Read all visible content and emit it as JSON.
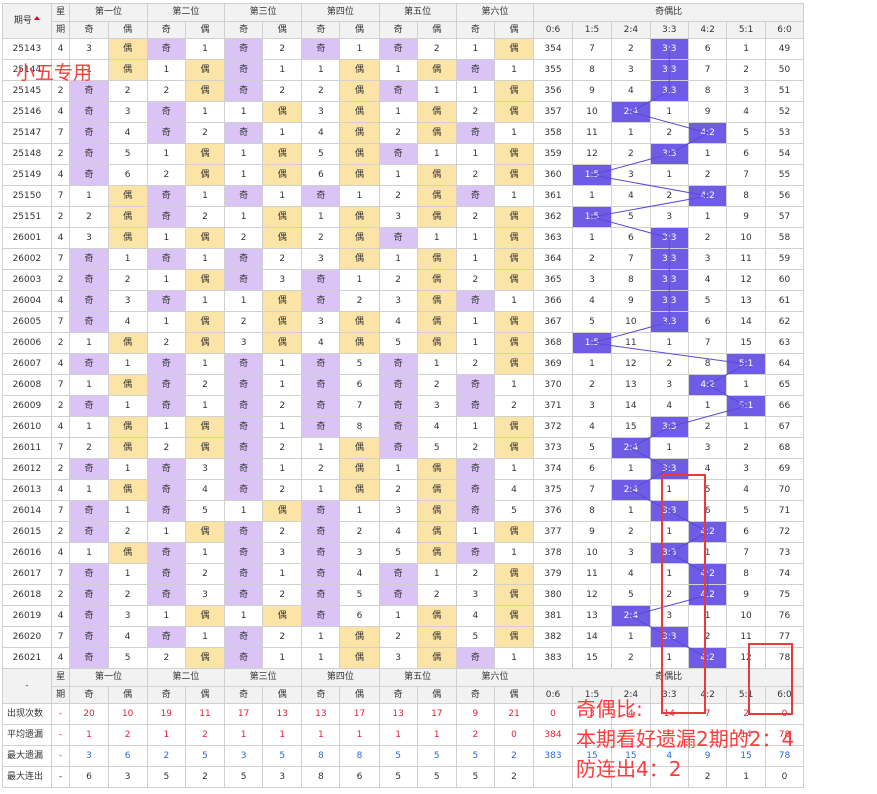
{
  "header": {
    "period_label": "期号",
    "weekday_label": [
      "星",
      "期"
    ],
    "position_labels": [
      "第一位",
      "第二位",
      "第三位",
      "第四位",
      "第五位",
      "第六位"
    ],
    "ratio_label": "奇偶比",
    "odd": "奇",
    "even": "偶",
    "ratio_columns": [
      "0:6",
      "1:5",
      "2:4",
      "3:3",
      "4:2",
      "5:1",
      "6:0"
    ]
  },
  "rows": [
    {
      "period": "25143",
      "wd": "4",
      "pos": [
        [
          3,
          "偶"
        ],
        [
          1,
          "奇"
        ],
        [
          2,
          "奇"
        ],
        [
          1,
          "奇"
        ],
        [
          2,
          "奇"
        ],
        [
          1,
          "偶"
        ]
      ],
      "ratio": [
        354,
        7,
        2,
        "3:3",
        6,
        1,
        49
      ]
    },
    {
      "period": "25144",
      "wd": "7",
      "pos": [
        [
          1,
          "偶"
        ],
        [
          1,
          "偶"
        ],
        [
          1,
          "奇"
        ],
        [
          1,
          "偶"
        ],
        [
          1,
          "偶"
        ],
        [
          1,
          "奇"
        ]
      ],
      "ratio": [
        355,
        8,
        3,
        "3:3",
        7,
        2,
        50
      ]
    },
    {
      "period": "25145",
      "wd": "2",
      "pos": [
        [
          2,
          "奇"
        ],
        [
          2,
          "偶"
        ],
        [
          2,
          "奇"
        ],
        [
          2,
          "偶"
        ],
        [
          1,
          "奇"
        ],
        [
          1,
          "偶"
        ]
      ],
      "ratio": [
        356,
        9,
        4,
        "3:3",
        8,
        3,
        51
      ]
    },
    {
      "period": "25146",
      "wd": "4",
      "pos": [
        [
          3,
          "奇"
        ],
        [
          1,
          "奇"
        ],
        [
          1,
          "偶"
        ],
        [
          3,
          "偶"
        ],
        [
          1,
          "偶"
        ],
        [
          2,
          "偶"
        ]
      ],
      "ratio": [
        357,
        10,
        "2:4",
        1,
        9,
        4,
        52
      ]
    },
    {
      "period": "25147",
      "wd": "7",
      "pos": [
        [
          4,
          "奇"
        ],
        [
          2,
          "奇"
        ],
        [
          1,
          "奇"
        ],
        [
          4,
          "偶"
        ],
        [
          2,
          "偶"
        ],
        [
          1,
          "奇"
        ]
      ],
      "ratio": [
        358,
        11,
        1,
        2,
        "4:2",
        5,
        53
      ]
    },
    {
      "period": "25148",
      "wd": "2",
      "pos": [
        [
          5,
          "奇"
        ],
        [
          1,
          "偶"
        ],
        [
          1,
          "偶"
        ],
        [
          5,
          "偶"
        ],
        [
          1,
          "奇"
        ],
        [
          1,
          "偶"
        ]
      ],
      "ratio": [
        359,
        12,
        2,
        "3:3",
        1,
        6,
        54
      ]
    },
    {
      "period": "25149",
      "wd": "4",
      "pos": [
        [
          6,
          "奇"
        ],
        [
          2,
          "偶"
        ],
        [
          1,
          "偶"
        ],
        [
          6,
          "偶"
        ],
        [
          1,
          "偶"
        ],
        [
          2,
          "偶"
        ]
      ],
      "ratio": [
        360,
        "1:5",
        3,
        1,
        2,
        7,
        55
      ]
    },
    {
      "period": "25150",
      "wd": "7",
      "pos": [
        [
          1,
          "偶"
        ],
        [
          1,
          "奇"
        ],
        [
          1,
          "奇"
        ],
        [
          1,
          "奇"
        ],
        [
          2,
          "偶"
        ],
        [
          1,
          "奇"
        ]
      ],
      "ratio": [
        361,
        1,
        4,
        2,
        "4:2",
        8,
        56
      ]
    },
    {
      "period": "25151",
      "wd": "2",
      "pos": [
        [
          2,
          "偶"
        ],
        [
          2,
          "奇"
        ],
        [
          1,
          "偶"
        ],
        [
          1,
          "偶"
        ],
        [
          3,
          "偶"
        ],
        [
          2,
          "偶"
        ]
      ],
      "ratio": [
        362,
        "1:5",
        5,
        3,
        1,
        9,
        57
      ]
    },
    {
      "period": "26001",
      "wd": "4",
      "pos": [
        [
          3,
          "偶"
        ],
        [
          1,
          "偶"
        ],
        [
          2,
          "偶"
        ],
        [
          2,
          "偶"
        ],
        [
          1,
          "奇"
        ],
        [
          1,
          "偶"
        ]
      ],
      "ratio": [
        363,
        1,
        6,
        "3:3",
        2,
        10,
        58
      ]
    },
    {
      "period": "26002",
      "wd": "7",
      "pos": [
        [
          1,
          "奇"
        ],
        [
          1,
          "奇"
        ],
        [
          2,
          "奇"
        ],
        [
          3,
          "偶"
        ],
        [
          1,
          "偶"
        ],
        [
          1,
          "偶"
        ]
      ],
      "ratio": [
        364,
        2,
        7,
        "3:3",
        3,
        11,
        59
      ]
    },
    {
      "period": "26003",
      "wd": "2",
      "pos": [
        [
          2,
          "奇"
        ],
        [
          1,
          "偶"
        ],
        [
          3,
          "奇"
        ],
        [
          1,
          "奇"
        ],
        [
          2,
          "偶"
        ],
        [
          2,
          "偶"
        ]
      ],
      "ratio": [
        365,
        3,
        8,
        "3:3",
        4,
        12,
        60
      ]
    },
    {
      "period": "26004",
      "wd": "4",
      "pos": [
        [
          3,
          "奇"
        ],
        [
          1,
          "奇"
        ],
        [
          1,
          "偶"
        ],
        [
          2,
          "奇"
        ],
        [
          3,
          "偶"
        ],
        [
          1,
          "奇"
        ]
      ],
      "ratio": [
        366,
        4,
        9,
        "3:3",
        5,
        13,
        61
      ]
    },
    {
      "period": "26005",
      "wd": "7",
      "pos": [
        [
          4,
          "奇"
        ],
        [
          1,
          "偶"
        ],
        [
          2,
          "偶"
        ],
        [
          3,
          "偶"
        ],
        [
          4,
          "偶"
        ],
        [
          1,
          "偶"
        ]
      ],
      "ratio": [
        367,
        5,
        10,
        "3:3",
        6,
        14,
        62
      ]
    },
    {
      "period": "26006",
      "wd": "2",
      "pos": [
        [
          1,
          "偶"
        ],
        [
          2,
          "偶"
        ],
        [
          3,
          "偶"
        ],
        [
          4,
          "偶"
        ],
        [
          5,
          "偶"
        ],
        [
          1,
          "偶"
        ]
      ],
      "ratio": [
        368,
        "1:5",
        11,
        1,
        7,
        15,
        63
      ]
    },
    {
      "period": "26007",
      "wd": "4",
      "pos": [
        [
          1,
          "奇"
        ],
        [
          1,
          "奇"
        ],
        [
          1,
          "奇"
        ],
        [
          5,
          "奇"
        ],
        [
          1,
          "奇"
        ],
        [
          2,
          "偶"
        ]
      ],
      "ratio": [
        369,
        1,
        12,
        2,
        8,
        "5:1",
        64
      ]
    },
    {
      "period": "26008",
      "wd": "7",
      "pos": [
        [
          1,
          "偶"
        ],
        [
          2,
          "奇"
        ],
        [
          1,
          "奇"
        ],
        [
          6,
          "奇"
        ],
        [
          2,
          "奇"
        ],
        [
          1,
          "奇"
        ]
      ],
      "ratio": [
        370,
        2,
        13,
        3,
        "4:2",
        1,
        65
      ]
    },
    {
      "period": "26009",
      "wd": "2",
      "pos": [
        [
          1,
          "奇"
        ],
        [
          1,
          "奇"
        ],
        [
          2,
          "奇"
        ],
        [
          7,
          "奇"
        ],
        [
          3,
          "奇"
        ],
        [
          2,
          "奇"
        ]
      ],
      "ratio": [
        371,
        3,
        14,
        4,
        1,
        "5:1",
        66
      ]
    },
    {
      "period": "26010",
      "wd": "4",
      "pos": [
        [
          1,
          "偶"
        ],
        [
          1,
          "偶"
        ],
        [
          1,
          "奇"
        ],
        [
          8,
          "奇"
        ],
        [
          4,
          "奇"
        ],
        [
          1,
          "偶"
        ]
      ],
      "ratio": [
        372,
        4,
        15,
        "3:3",
        2,
        1,
        67
      ]
    },
    {
      "period": "26011",
      "wd": "7",
      "pos": [
        [
          2,
          "偶"
        ],
        [
          2,
          "偶"
        ],
        [
          2,
          "奇"
        ],
        [
          1,
          "偶"
        ],
        [
          5,
          "奇"
        ],
        [
          2,
          "偶"
        ]
      ],
      "ratio": [
        373,
        5,
        "2:4",
        1,
        3,
        2,
        68
      ]
    },
    {
      "period": "26012",
      "wd": "2",
      "pos": [
        [
          1,
          "奇"
        ],
        [
          3,
          "奇"
        ],
        [
          1,
          "奇"
        ],
        [
          2,
          "偶"
        ],
        [
          1,
          "偶"
        ],
        [
          1,
          "奇"
        ]
      ],
      "ratio": [
        374,
        6,
        1,
        "3:3",
        4,
        3,
        69
      ]
    },
    {
      "period": "26013",
      "wd": "4",
      "pos": [
        [
          1,
          "偶"
        ],
        [
          4,
          "奇"
        ],
        [
          2,
          "奇"
        ],
        [
          1,
          "偶"
        ],
        [
          2,
          "偶"
        ],
        [
          4,
          "奇"
        ]
      ],
      "ratio": [
        375,
        7,
        "2:4",
        1,
        5,
        4,
        70
      ]
    },
    {
      "period": "26014",
      "wd": "7",
      "pos": [
        [
          1,
          "奇"
        ],
        [
          5,
          "奇"
        ],
        [
          1,
          "偶"
        ],
        [
          1,
          "奇"
        ],
        [
          3,
          "偶"
        ],
        [
          5,
          "奇"
        ]
      ],
      "ratio": [
        376,
        8,
        1,
        "3:3",
        6,
        5,
        71
      ]
    },
    {
      "period": "26015",
      "wd": "2",
      "pos": [
        [
          2,
          "奇"
        ],
        [
          1,
          "偶"
        ],
        [
          2,
          "奇"
        ],
        [
          2,
          "奇"
        ],
        [
          4,
          "偶"
        ],
        [
          1,
          "偶"
        ]
      ],
      "ratio": [
        377,
        9,
        2,
        1,
        "4:2",
        6,
        72
      ]
    },
    {
      "period": "26016",
      "wd": "4",
      "pos": [
        [
          1,
          "偶"
        ],
        [
          1,
          "奇"
        ],
        [
          3,
          "奇"
        ],
        [
          3,
          "奇"
        ],
        [
          5,
          "偶"
        ],
        [
          1,
          "奇"
        ]
      ],
      "ratio": [
        378,
        10,
        3,
        "3:3",
        1,
        7,
        73
      ]
    },
    {
      "period": "26017",
      "wd": "7",
      "pos": [
        [
          1,
          "奇"
        ],
        [
          2,
          "奇"
        ],
        [
          1,
          "奇"
        ],
        [
          4,
          "奇"
        ],
        [
          1,
          "奇"
        ],
        [
          2,
          "偶"
        ]
      ],
      "ratio": [
        379,
        11,
        4,
        1,
        "4:2",
        8,
        74
      ]
    },
    {
      "period": "26018",
      "wd": "2",
      "pos": [
        [
          2,
          "奇"
        ],
        [
          3,
          "奇"
        ],
        [
          2,
          "奇"
        ],
        [
          5,
          "奇"
        ],
        [
          2,
          "奇"
        ],
        [
          3,
          "偶"
        ]
      ],
      "ratio": [
        380,
        12,
        5,
        2,
        "4:2",
        9,
        75
      ]
    },
    {
      "period": "26019",
      "wd": "4",
      "pos": [
        [
          3,
          "奇"
        ],
        [
          1,
          "偶"
        ],
        [
          1,
          "偶"
        ],
        [
          6,
          "奇"
        ],
        [
          1,
          "偶"
        ],
        [
          4,
          "偶"
        ]
      ],
      "ratio": [
        381,
        13,
        "2:4",
        3,
        1,
        10,
        76
      ]
    },
    {
      "period": "26020",
      "wd": "7",
      "pos": [
        [
          4,
          "奇"
        ],
        [
          1,
          "奇"
        ],
        [
          2,
          "奇"
        ],
        [
          1,
          "偶"
        ],
        [
          2,
          "偶"
        ],
        [
          5,
          "偶"
        ]
      ],
      "ratio": [
        382,
        14,
        1,
        "3:3",
        2,
        11,
        77
      ]
    },
    {
      "period": "26021",
      "wd": "4",
      "pos": [
        [
          5,
          "奇"
        ],
        [
          2,
          "偶"
        ],
        [
          1,
          "奇"
        ],
        [
          1,
          "偶"
        ],
        [
          3,
          "偶"
        ],
        [
          1,
          "奇"
        ]
      ],
      "ratio": [
        383,
        15,
        2,
        1,
        "4:2",
        12,
        78
      ]
    }
  ],
  "stats": [
    {
      "label": "出现次数",
      "dash": "-",
      "color": "red",
      "values": [
        20,
        10,
        19,
        11,
        17,
        13,
        13,
        17,
        13,
        17,
        9,
        21,
        0,
        3,
        4,
        14,
        7,
        2,
        0
      ]
    },
    {
      "label": "平均遗漏",
      "dash": "-",
      "color": "red",
      "values": [
        1,
        2,
        1,
        2,
        1,
        1,
        1,
        1,
        1,
        1,
        2,
        0,
        384,
        "",
        "",
        "",
        "",
        14,
        78
      ]
    },
    {
      "label": "最大遗漏",
      "dash": "-",
      "color": "blue",
      "values": [
        3,
        6,
        2,
        5,
        3,
        5,
        8,
        8,
        5,
        5,
        5,
        2,
        383,
        15,
        15,
        4,
        9,
        15,
        78
      ]
    },
    {
      "label": "最大连出",
      "dash": "-",
      "color": "dark",
      "values": [
        6,
        3,
        5,
        2,
        5,
        3,
        8,
        6,
        5,
        5,
        5,
        2,
        "",
        "",
        "",
        "",
        2,
        1,
        0
      ]
    }
  ],
  "overlay": {
    "label": "小五专用",
    "note_lines": [
      "奇偶比:",
      "本期看好遗漏2期的2：4",
      "防连出4：2"
    ]
  },
  "colors": {
    "odd_bg": "#d9c4f5",
    "even_bg": "#fce3a6",
    "ratio_hit_bg": "#6e5ce6",
    "annotation": "#ff3b3b",
    "stat_red": "#e0223a",
    "stat_blue": "#2a6bd0"
  }
}
